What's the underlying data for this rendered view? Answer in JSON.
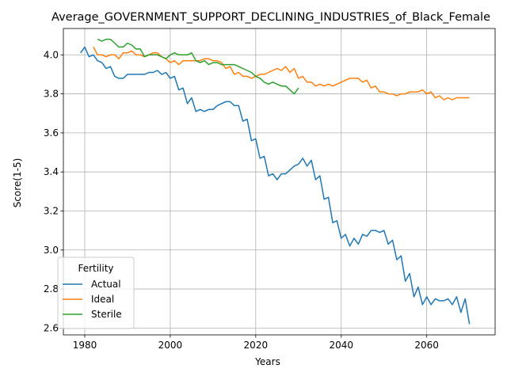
{
  "chart_data": {
    "type": "line",
    "title": "Average_GOVERNMENT_SUPPORT_DECLINING_INDUSTRIES_of_Black_Female",
    "xlabel": "Years",
    "ylabel": "Score(1-5)",
    "xlim": [
      1975,
      2076
    ],
    "ylim": [
      2.565,
      4.135
    ],
    "xticks": [
      1980,
      2000,
      2020,
      2040,
      2060
    ],
    "yticks": [
      2.6,
      2.8,
      3.0,
      3.2,
      3.4,
      3.6,
      3.8,
      4.0
    ],
    "grid": true,
    "legend": {
      "title": "Fertility",
      "position": "lower-left"
    },
    "series": [
      {
        "name": "Actual",
        "color": "#1f77b4",
        "x": [
          1979,
          1980,
          1981,
          1982,
          1983,
          1984,
          1985,
          1986,
          1987,
          1988,
          1989,
          1990,
          1991,
          1992,
          1993,
          1994,
          1995,
          1996,
          1997,
          1998,
          1999,
          2000,
          2001,
          2002,
          2003,
          2004,
          2005,
          2006,
          2007,
          2008,
          2009,
          2010,
          2011,
          2012,
          2013,
          2014,
          2015,
          2016,
          2017,
          2018,
          2019,
          2020,
          2021,
          2022,
          2023,
          2024,
          2025,
          2026,
          2027,
          2028,
          2029,
          2030,
          2031,
          2032,
          2033,
          2034,
          2035,
          2036,
          2037,
          2038,
          2039,
          2040,
          2041,
          2042,
          2043,
          2044,
          2045,
          2046,
          2047,
          2048,
          2049,
          2050,
          2051,
          2052,
          2053,
          2054,
          2055,
          2056,
          2057,
          2058,
          2059,
          2060,
          2061,
          2062,
          2063,
          2064,
          2065,
          2066,
          2067,
          2068,
          2069,
          2070
        ],
        "y": [
          4.01,
          4.04,
          3.99,
          4.0,
          3.97,
          3.96,
          3.93,
          3.94,
          3.89,
          3.88,
          3.88,
          3.9,
          3.9,
          3.9,
          3.9,
          3.9,
          3.91,
          3.91,
          3.92,
          3.9,
          3.91,
          3.88,
          3.89,
          3.82,
          3.83,
          3.75,
          3.78,
          3.71,
          3.72,
          3.71,
          3.72,
          3.72,
          3.74,
          3.75,
          3.76,
          3.76,
          3.74,
          3.74,
          3.66,
          3.67,
          3.56,
          3.57,
          3.47,
          3.48,
          3.38,
          3.39,
          3.36,
          3.39,
          3.39,
          3.41,
          3.43,
          3.44,
          3.47,
          3.43,
          3.46,
          3.36,
          3.38,
          3.26,
          3.27,
          3.14,
          3.15,
          3.06,
          3.08,
          3.02,
          3.06,
          3.03,
          3.08,
          3.07,
          3.1,
          3.1,
          3.09,
          3.1,
          3.03,
          3.05,
          2.95,
          2.97,
          2.84,
          2.88,
          2.76,
          2.81,
          2.72,
          2.76,
          2.72,
          2.75,
          2.74,
          2.74,
          2.75,
          2.72,
          2.76,
          2.68,
          2.75,
          2.62
        ]
      },
      {
        "name": "Ideal",
        "color": "#ff7f0e",
        "x": [
          1982,
          1983,
          1984,
          1985,
          1986,
          1987,
          1988,
          1989,
          1990,
          1991,
          1992,
          1993,
          1994,
          1995,
          1996,
          1997,
          1998,
          1999,
          2000,
          2001,
          2002,
          2003,
          2004,
          2005,
          2006,
          2007,
          2008,
          2009,
          2010,
          2011,
          2012,
          2013,
          2014,
          2015,
          2016,
          2017,
          2018,
          2019,
          2020,
          2021,
          2022,
          2023,
          2024,
          2025,
          2026,
          2027,
          2028,
          2029,
          2030,
          2031,
          2032,
          2033,
          2034,
          2035,
          2036,
          2037,
          2038,
          2039,
          2040,
          2041,
          2042,
          2043,
          2044,
          2045,
          2046,
          2047,
          2048,
          2049,
          2050,
          2051,
          2052,
          2053,
          2054,
          2055,
          2056,
          2057,
          2058,
          2059,
          2060,
          2061,
          2062,
          2063,
          2064,
          2065,
          2066,
          2067,
          2068,
          2069,
          2070
        ],
        "y": [
          4.04,
          4.0,
          4.0,
          3.99,
          4.0,
          4.0,
          3.98,
          4.01,
          4.01,
          4.02,
          4.0,
          4.0,
          3.99,
          4.0,
          4.01,
          4.01,
          3.99,
          3.98,
          3.96,
          3.97,
          3.95,
          3.97,
          3.97,
          3.97,
          3.97,
          3.97,
          3.98,
          3.98,
          3.97,
          3.97,
          3.96,
          3.93,
          3.94,
          3.9,
          3.91,
          3.89,
          3.89,
          3.88,
          3.89,
          3.9,
          3.9,
          3.91,
          3.92,
          3.93,
          3.92,
          3.94,
          3.91,
          3.93,
          3.88,
          3.89,
          3.86,
          3.86,
          3.84,
          3.85,
          3.84,
          3.85,
          3.84,
          3.85,
          3.86,
          3.87,
          3.88,
          3.88,
          3.88,
          3.86,
          3.87,
          3.83,
          3.84,
          3.81,
          3.81,
          3.8,
          3.8,
          3.79,
          3.8,
          3.8,
          3.81,
          3.81,
          3.81,
          3.82,
          3.8,
          3.81,
          3.78,
          3.79,
          3.77,
          3.78,
          3.77,
          3.78,
          3.78,
          3.78,
          3.78
        ]
      },
      {
        "name": "Sterile",
        "color": "#2ca02c",
        "x": [
          1983,
          1984,
          1985,
          1986,
          1987,
          1988,
          1989,
          1990,
          1991,
          1992,
          1993,
          1994,
          1995,
          1996,
          1997,
          1998,
          1999,
          2000,
          2001,
          2002,
          2003,
          2004,
          2005,
          2006,
          2007,
          2008,
          2009,
          2010,
          2011,
          2012,
          2013,
          2014,
          2015,
          2016,
          2017,
          2018,
          2019,
          2020,
          2021,
          2022,
          2023,
          2024,
          2025,
          2026,
          2027,
          2028,
          2029,
          2030
        ],
        "y": [
          4.08,
          4.07,
          4.08,
          4.08,
          4.06,
          4.04,
          4.04,
          4.06,
          4.05,
          4.03,
          4.03,
          3.99,
          4.0,
          4.0,
          4.0,
          3.99,
          3.98,
          4.0,
          4.01,
          4.0,
          4.0,
          4.0,
          4.01,
          3.97,
          3.96,
          3.97,
          3.95,
          3.96,
          3.96,
          3.95,
          3.95,
          3.95,
          3.95,
          3.94,
          3.93,
          3.92,
          3.91,
          3.89,
          3.88,
          3.86,
          3.85,
          3.86,
          3.85,
          3.84,
          3.84,
          3.82,
          3.8,
          3.83
        ]
      }
    ]
  }
}
